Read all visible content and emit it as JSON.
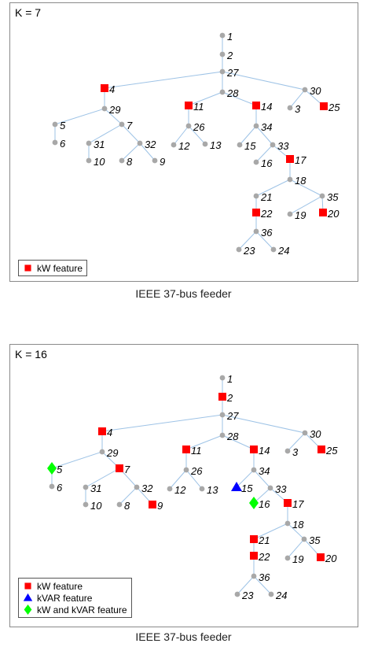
{
  "panels": [
    {
      "k_label": "K = 7",
      "caption": "IEEE 37-bus feeder",
      "legend": [
        {
          "marker": "square",
          "color": "#ff0000",
          "label": "kW feature"
        }
      ],
      "features": {
        "1": "none",
        "2": "none",
        "3": "none",
        "4": "kw",
        "5": "none",
        "6": "none",
        "7": "none",
        "8": "none",
        "9": "none",
        "10": "none",
        "11": "kw",
        "12": "none",
        "13": "none",
        "14": "kw",
        "15": "none",
        "16": "none",
        "17": "kw",
        "18": "none",
        "19": "none",
        "20": "kw",
        "21": "none",
        "22": "kw",
        "23": "none",
        "24": "none",
        "25": "kw",
        "26": "none",
        "27": "none",
        "28": "none",
        "29": "none",
        "30": "none",
        "31": "none",
        "32": "none",
        "33": "none",
        "34": "none",
        "35": "none",
        "36": "none"
      }
    },
    {
      "k_label": "K = 16",
      "caption": "IEEE 37-bus feeder",
      "legend": [
        {
          "marker": "square",
          "color": "#ff0000",
          "label": "kW feature"
        },
        {
          "marker": "triangle",
          "color": "#0000ff",
          "label": "kVAR feature"
        },
        {
          "marker": "diamond",
          "color": "#00ff00",
          "label": "kW and kVAR feature"
        }
      ],
      "features": {
        "1": "none",
        "2": "kw",
        "3": "none",
        "4": "kw",
        "5": "both",
        "6": "none",
        "7": "kw",
        "8": "none",
        "9": "kw",
        "10": "none",
        "11": "kw",
        "12": "none",
        "13": "none",
        "14": "kw",
        "15": "kvar",
        "16": "both",
        "17": "kw",
        "18": "none",
        "19": "none",
        "20": "kw",
        "21": "kw",
        "22": "kw",
        "23": "none",
        "24": "none",
        "25": "kw",
        "26": "none",
        "27": "none",
        "28": "none",
        "29": "none",
        "30": "none",
        "31": "none",
        "32": "none",
        "33": "none",
        "34": "none",
        "35": "none",
        "36": "none"
      }
    }
  ],
  "graph": {
    "edges": [
      [
        "1",
        "2"
      ],
      [
        "2",
        "27"
      ],
      [
        "27",
        "4"
      ],
      [
        "27",
        "28"
      ],
      [
        "27",
        "30"
      ],
      [
        "4",
        "29"
      ],
      [
        "29",
        "5"
      ],
      [
        "29",
        "7"
      ],
      [
        "5",
        "6"
      ],
      [
        "7",
        "31"
      ],
      [
        "7",
        "32"
      ],
      [
        "31",
        "10"
      ],
      [
        "32",
        "8"
      ],
      [
        "32",
        "9"
      ],
      [
        "28",
        "11"
      ],
      [
        "28",
        "14"
      ],
      [
        "11",
        "26"
      ],
      [
        "26",
        "12"
      ],
      [
        "26",
        "13"
      ],
      [
        "14",
        "34"
      ],
      [
        "34",
        "15"
      ],
      [
        "34",
        "33"
      ],
      [
        "33",
        "16"
      ],
      [
        "33",
        "17"
      ],
      [
        "17",
        "18"
      ],
      [
        "18",
        "21"
      ],
      [
        "18",
        "35"
      ],
      [
        "21",
        "22"
      ],
      [
        "22",
        "36"
      ],
      [
        "36",
        "23"
      ],
      [
        "36",
        "24"
      ],
      [
        "35",
        "19"
      ],
      [
        "35",
        "20"
      ],
      [
        "30",
        "3"
      ],
      [
        "30",
        "25"
      ]
    ],
    "node_color": "#a8a8a8",
    "edge_color": "#9ec3e6"
  }
}
